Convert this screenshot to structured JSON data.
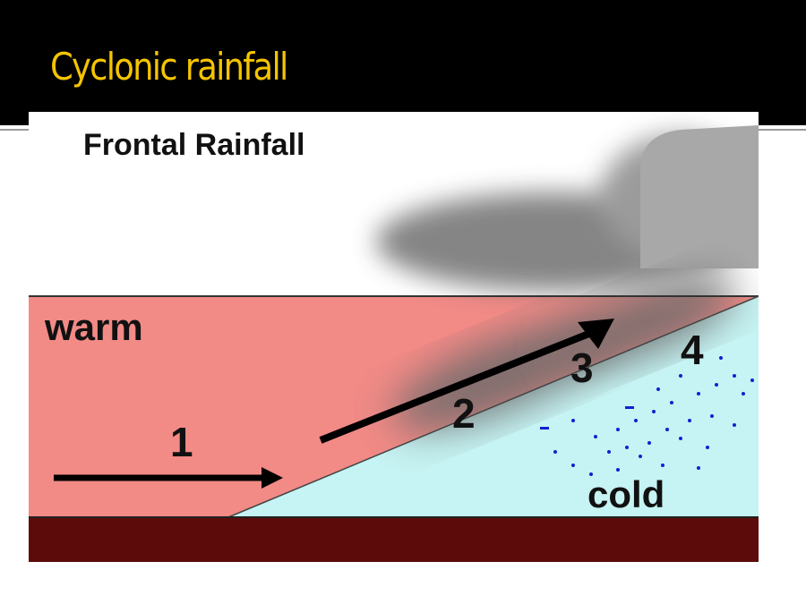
{
  "slide": {
    "title": "Cyclonic rainfall"
  },
  "diagram": {
    "heading": "Frontal Rainfall",
    "labels": {
      "warm": "warm",
      "cold": "cold",
      "step1": "1",
      "step2": "2",
      "step3": "3",
      "step4": "4"
    },
    "colors": {
      "title": "#f5c400",
      "warm_air": "#f28a86",
      "cold_air": "#c6f3f3",
      "ground": "#5c0a0a",
      "cloud": "#808080",
      "rain": "#1020d0"
    }
  }
}
